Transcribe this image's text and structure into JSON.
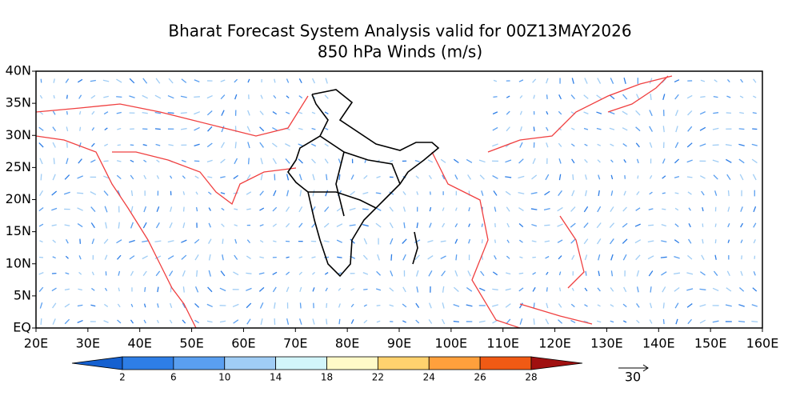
{
  "title": "Bharat Forecast System Analysis valid for 00Z13MAY2026",
  "subtitle": "850 hPa Winds (m/s)",
  "map": {
    "lat_labels": [
      "40N",
      "35N",
      "30N",
      "25N",
      "20N",
      "15N",
      "10N",
      "5N",
      "EQ"
    ],
    "lon_labels": [
      "20E",
      "30E",
      "40E",
      "50E",
      "60E",
      "70E",
      "80E",
      "90E",
      "100E",
      "110E",
      "120E",
      "130E",
      "140E",
      "150E",
      "160E"
    ]
  },
  "colorbar": {
    "labels": [
      "2",
      "6",
      "10",
      "14",
      "18",
      "22",
      "24",
      "26",
      "28"
    ],
    "colors": [
      "#1560d0",
      "#2e7ee6",
      "#5a9ff0",
      "#a0cdf5",
      "#d2f5fa",
      "#fffac8",
      "#ffd26e",
      "#ffa03c",
      "#f05a14",
      "#a01010"
    ]
  },
  "reference_vector": {
    "label": "30"
  }
}
